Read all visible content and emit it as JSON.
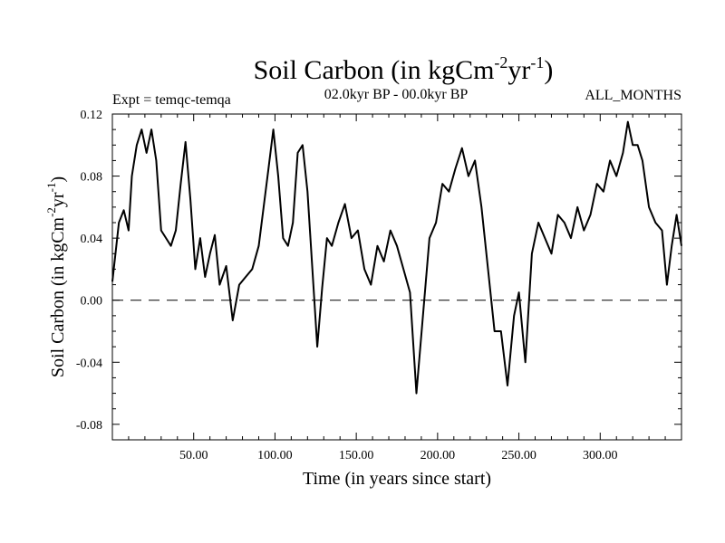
{
  "chart_data": {
    "type": "line",
    "title": {
      "main": "Soil Carbon (in kgCm",
      "sup1": "-2",
      "mid": "yr",
      "sup2": "-1",
      "end": ")"
    },
    "subtitle_left": "Expt = temqc-temqa",
    "subtitle_center": "02.0kyr BP - 00.0kyr BP",
    "subtitle_right": "ALL_MONTHS",
    "xlabel": "Time (in years since start)",
    "ylabel": {
      "main": "Soil Carbon (in kgCm",
      "sup1": "-2",
      "mid": "yr",
      "sup2": "-1",
      "end": ")"
    },
    "xlim": [
      0,
      350
    ],
    "ylim": [
      -0.09,
      0.12
    ],
    "xticks": [
      50,
      100,
      150,
      200,
      250,
      300
    ],
    "xtick_labels": [
      "50.00",
      "100.00",
      "150.00",
      "200.00",
      "250.00",
      "300.00"
    ],
    "yticks": [
      -0.08,
      -0.04,
      0.0,
      0.04,
      0.08,
      0.12
    ],
    "ytick_labels": [
      "-0.08",
      "-0.04",
      "0.00",
      "0.04",
      "0.08",
      "0.12"
    ],
    "reference_line": {
      "y": 0.0,
      "style": "dashed"
    },
    "series": [
      {
        "name": "Soil Carbon",
        "x": [
          0,
          4,
          7,
          10,
          12,
          15,
          18,
          21,
          24,
          27,
          30,
          33,
          36,
          39,
          42,
          45,
          48,
          51,
          54,
          57,
          60,
          63,
          66,
          70,
          74,
          78,
          82,
          86,
          90,
          93,
          96,
          99,
          102,
          105,
          108,
          111,
          114,
          117,
          120,
          123,
          126,
          129,
          132,
          135,
          139,
          143,
          147,
          151,
          155,
          159,
          163,
          167,
          171,
          175,
          179,
          183,
          187,
          191,
          195,
          199,
          203,
          207,
          211,
          215,
          219,
          223,
          227,
          231,
          235,
          239,
          243,
          247,
          250,
          254,
          258,
          262,
          266,
          270,
          274,
          278,
          282,
          286,
          290,
          294,
          298,
          302,
          306,
          310,
          314,
          317,
          320,
          323,
          326,
          330,
          334,
          338,
          341,
          344,
          347,
          350
        ],
        "y": [
          0.012,
          0.05,
          0.058,
          0.045,
          0.08,
          0.1,
          0.11,
          0.095,
          0.11,
          0.09,
          0.045,
          0.04,
          0.035,
          0.045,
          0.075,
          0.102,
          0.065,
          0.02,
          0.04,
          0.015,
          0.03,
          0.042,
          0.01,
          0.022,
          -0.013,
          0.01,
          0.015,
          0.02,
          0.035,
          0.06,
          0.085,
          0.11,
          0.08,
          0.04,
          0.035,
          0.05,
          0.095,
          0.1,
          0.07,
          0.02,
          -0.03,
          0.008,
          0.04,
          0.035,
          0.05,
          0.062,
          0.04,
          0.045,
          0.02,
          0.01,
          0.035,
          0.025,
          0.045,
          0.035,
          0.02,
          0.005,
          -0.06,
          -0.01,
          0.04,
          0.05,
          0.075,
          0.07,
          0.085,
          0.098,
          0.08,
          0.09,
          0.06,
          0.02,
          -0.02,
          -0.02,
          -0.055,
          -0.01,
          0.005,
          -0.04,
          0.03,
          0.05,
          0.04,
          0.03,
          0.055,
          0.05,
          0.04,
          0.06,
          0.045,
          0.055,
          0.075,
          0.07,
          0.09,
          0.08,
          0.095,
          0.115,
          0.1,
          0.1,
          0.09,
          0.06,
          0.05,
          0.045,
          0.01,
          0.035,
          0.055,
          0.035
        ]
      }
    ]
  }
}
